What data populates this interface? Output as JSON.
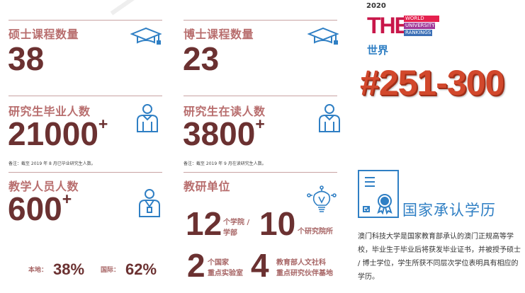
{
  "stats": {
    "master_programs": {
      "title": "硕士课程数量",
      "value": "38"
    },
    "phd_programs": {
      "title": "博士课程数量",
      "value": "23"
    },
    "pg_graduates": {
      "title": "研究生毕业人数",
      "value": "21000",
      "suffix": "+",
      "note": "备注：截至 2019 年 8 月已毕业研究生人数。"
    },
    "pg_current": {
      "title": "研究生在读人数",
      "value": "3800",
      "suffix": "+",
      "note": "备注：截至 2019 年 9 月在读研究生人数。"
    },
    "faculty": {
      "title": "教学人员人数",
      "value": "600",
      "suffix": "+",
      "local_label": "本地：",
      "local_value": "38%",
      "intl_label": "国际：",
      "intl_value": "62%"
    },
    "research": {
      "title": "教研单位",
      "faculties_value": "12",
      "faculties_label_1": "个学院 /",
      "faculties_label_2": "学部",
      "institutes_value": "10",
      "institutes_label": "个研究院所",
      "labs_value": "2",
      "labs_label_1": "个国家",
      "labs_label_2": "重点实验室",
      "bases_value": "4",
      "bases_label_1": "教育部人文社科",
      "bases_label_2": "重点研究伙伴基地"
    }
  },
  "ranking": {
    "year": "2020",
    "logo_the": "THE",
    "logo_line1": "WORLD",
    "logo_line2": "UNIVERSITY",
    "logo_line3": "RANKINGS",
    "scope": "世界",
    "rank": "#251-300"
  },
  "recognition": {
    "title": "国家承认学历",
    "body": "澳门科技大学是国家教育部承认的澳门正规高等学校，毕业生于毕业后将获发毕业证书，并被授予硕士 / 博士学位，学生所获不同层次学位表明具有相应的学历。"
  },
  "colors": {
    "number": "#6b3131",
    "title": "#b86e6e",
    "icon": "#2f7fc4",
    "rank": "#d2482c"
  }
}
